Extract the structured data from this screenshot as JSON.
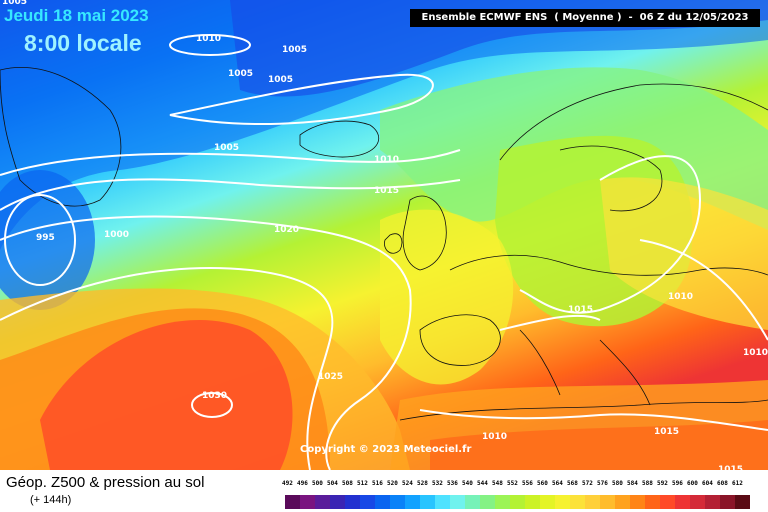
{
  "header": {
    "date": "Jeudi 18 mai 2023",
    "time": "8:00 locale",
    "model_run": "Ensemble ECMWF ENS  ( Moyenne )  -  06 Z du 12/05/2023"
  },
  "copyright": "Copyright © 2023 Meteociel.fr",
  "legend": {
    "title": "Géop. Z500 & pression au sol",
    "subtitle": "(+ 144h)",
    "ticks": [
      "492",
      "496",
      "500",
      "504",
      "508",
      "512",
      "516",
      "520",
      "524",
      "528",
      "532",
      "536",
      "540",
      "544",
      "548",
      "552",
      "556",
      "560",
      "564",
      "568",
      "572",
      "576",
      "580",
      "584",
      "588",
      "592",
      "596",
      "600",
      "604",
      "608",
      "612"
    ],
    "colors": [
      "#5a0a5a",
      "#7a1480",
      "#5a1c9a",
      "#3a24b4",
      "#2230d0",
      "#1848e6",
      "#0a64f0",
      "#0a82f8",
      "#12a2ff",
      "#28c4ff",
      "#4ee2ff",
      "#70f2ee",
      "#76f2b8",
      "#84f284",
      "#9cf456",
      "#b4f234",
      "#ccf226",
      "#e4f426",
      "#f6f230",
      "#fce23a",
      "#ffd03a",
      "#ffbc2c",
      "#ffa21e",
      "#ff8416",
      "#ff6418",
      "#ff4a28",
      "#ee3434",
      "#d42a38",
      "#b42034",
      "#8a1428",
      "#5a0a14"
    ]
  },
  "isobars": [
    {
      "label": "1010"
    },
    {
      "label": "1005"
    },
    {
      "label": "1005"
    },
    {
      "label": "1005"
    },
    {
      "label": "1005"
    },
    {
      "label": "1005"
    },
    {
      "label": "1010"
    },
    {
      "label": "1015"
    },
    {
      "label": "995"
    },
    {
      "label": "1000"
    },
    {
      "label": "1020"
    },
    {
      "label": "1015"
    },
    {
      "label": "1010"
    },
    {
      "label": "1010"
    },
    {
      "label": "1025"
    },
    {
      "label": "1030"
    },
    {
      "label": "1010"
    },
    {
      "label": "1015"
    },
    {
      "label": "1015"
    },
    {
      "label": "1005"
    }
  ]
}
